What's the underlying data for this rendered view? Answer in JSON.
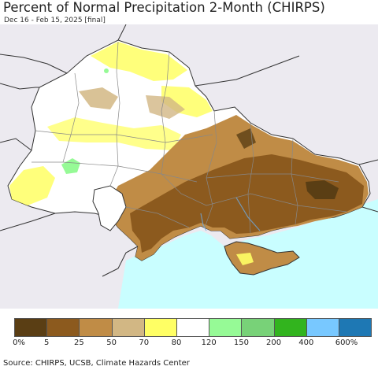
{
  "header": {
    "title": "Percent of Normal Precipitation 2-Month (CHIRPS)",
    "subtitle": "Dec 16 - Feb 15, 2025 [final]"
  },
  "map": {
    "colors": {
      "background": "#eceaf0",
      "sea": "#c9feff",
      "border": "#333333",
      "oblast": "#888888"
    }
  },
  "legend": {
    "colors": [
      "#5a3e14",
      "#8c5a1e",
      "#c08c46",
      "#d2b784",
      "#ffff64",
      "#ffffff",
      "#96fa96",
      "#78d278",
      "#32b41e",
      "#78c8ff",
      "#1e78b4"
    ],
    "labels": [
      "0%",
      "5",
      "25",
      "50",
      "70",
      "80",
      "120",
      "150",
      "200",
      "400",
      "600%"
    ]
  },
  "footer": {
    "source": "Source: CHIRPS, UCSB, Climate Hazards Center"
  }
}
